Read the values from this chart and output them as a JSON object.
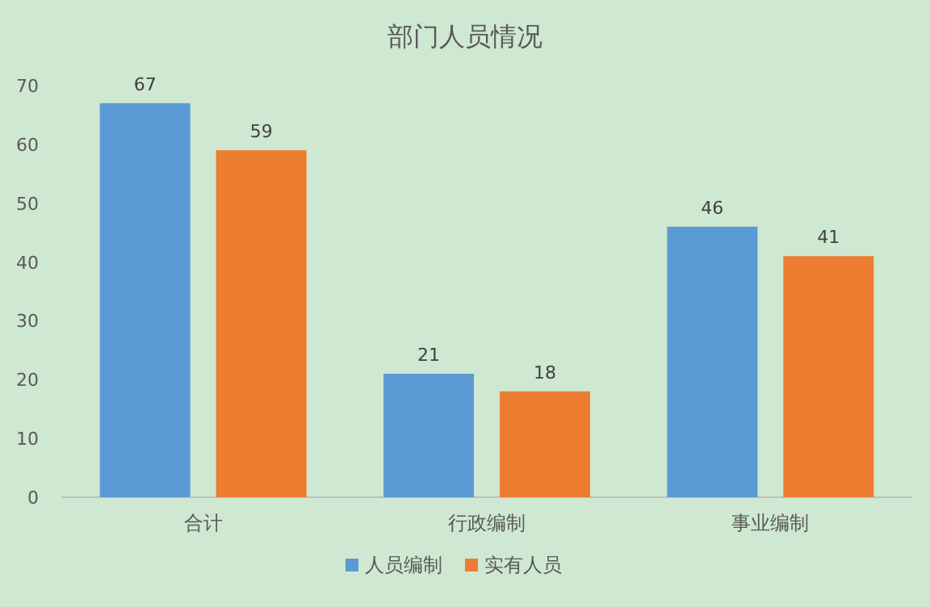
{
  "chart_data": {
    "type": "bar",
    "title": "部门人员情况",
    "categories": [
      "合计",
      "行政编制",
      "事业编制"
    ],
    "series": [
      {
        "name": "人员编制",
        "color": "#5b9bd5",
        "values": [
          67,
          21,
          46
        ]
      },
      {
        "name": "实有人员",
        "color": "#ed7d31",
        "values": [
          59,
          18,
          41
        ]
      }
    ],
    "ylim": [
      0,
      70
    ],
    "yticks": [
      0,
      10,
      20,
      30,
      40,
      50,
      60,
      70
    ],
    "grid": false,
    "legend": "bottom",
    "data_labels": true
  }
}
